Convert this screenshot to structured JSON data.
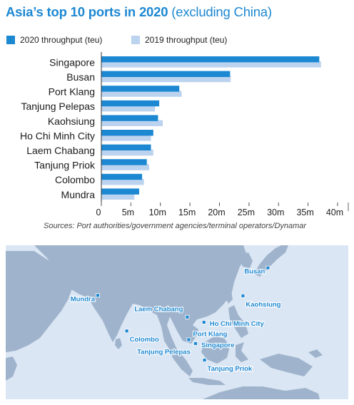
{
  "title": {
    "main": "Asia’s top 10 ports in 2020",
    "sub": "(excluding China)"
  },
  "chart_data": {
    "type": "bar",
    "orientation": "horizontal",
    "categories": [
      "Singapore",
      "Busan",
      "Port Klang",
      "Tanjung Pelepas",
      "Kaohsiung",
      "Ho Chi Minh City",
      "Laem Chabang",
      "Tanjung Priok",
      "Colombo",
      "Mundra"
    ],
    "series": [
      {
        "name": "2020 throughput (teu)",
        "color": "#1d88d2",
        "values": [
          36.9,
          21.8,
          13.2,
          9.8,
          9.6,
          8.8,
          8.4,
          7.7,
          6.9,
          6.4
        ]
      },
      {
        "name": "2019 throughput (teu)",
        "color": "#bcd3ef",
        "values": [
          37.2,
          21.9,
          13.6,
          9.1,
          10.4,
          8.4,
          8.8,
          8.1,
          7.2,
          5.6
        ]
      }
    ],
    "xticks": [
      "0",
      "5m",
      "10m",
      "15m",
      "20m",
      "25m",
      "30m",
      "35m",
      "40m"
    ],
    "xlim": [
      0,
      40
    ],
    "grid": false,
    "legend_position": "top-left"
  },
  "source": "Sources: Port authorities/government agencies/terminal operators/Dynamar",
  "map": {
    "colors": {
      "sea": "#dbe6f4",
      "land": "#9fb4cc",
      "marker": "#1d88d2",
      "label": "#1d88d2"
    },
    "ports": [
      {
        "name": "Busan",
        "lat": 35.1,
        "lon": 129.0,
        "label_side": "left"
      },
      {
        "name": "Kaohsiung",
        "lat": 22.6,
        "lon": 120.3,
        "label_side": "below-right"
      },
      {
        "name": "Mundra",
        "lat": 22.8,
        "lon": 69.7,
        "label_side": "left"
      },
      {
        "name": "Laem Chabang",
        "lat": 13.1,
        "lon": 100.9,
        "label_side": "above-left"
      },
      {
        "name": "Ho Chi Minh City",
        "lat": 10.8,
        "lon": 106.7,
        "label_side": "right"
      },
      {
        "name": "Colombo",
        "lat": 6.9,
        "lon": 79.8,
        "label_side": "below-right"
      },
      {
        "name": "Port Klang",
        "lat": 3.0,
        "lon": 101.4,
        "label_side": "above-right"
      },
      {
        "name": "Tanjung Pelepas",
        "lat": 1.4,
        "lon": 103.5,
        "label_side": "below-left"
      },
      {
        "name": "Singapore",
        "lat": 1.3,
        "lon": 103.8,
        "label_side": "right"
      },
      {
        "name": "Tanjung Priok",
        "lat": -6.1,
        "lon": 106.9,
        "label_side": "below-right"
      }
    ]
  }
}
